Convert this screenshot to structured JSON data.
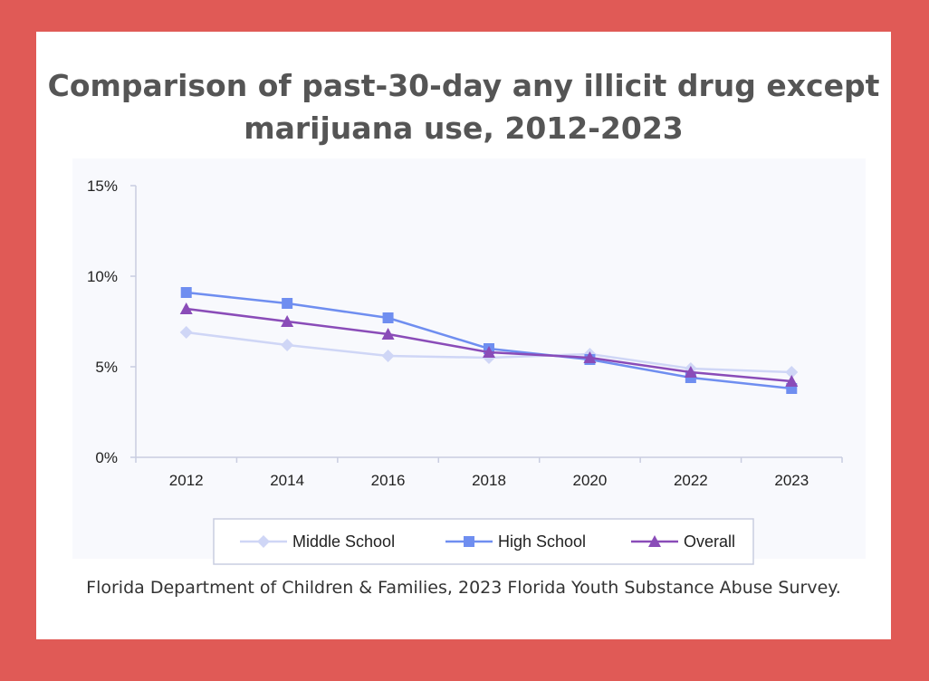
{
  "chart_data": {
    "type": "line",
    "title": "Comparison of past-30-day any illicit drug except marijuana use, 2012-2023",
    "categories": [
      "2012",
      "2014",
      "2016",
      "2018",
      "2020",
      "2022",
      "2023"
    ],
    "y_ticks": [
      "0%",
      "5%",
      "10%",
      "15%"
    ],
    "ylim": [
      0,
      15
    ],
    "grid": false,
    "legend_position": "bottom",
    "series": [
      {
        "name": "Middle School",
        "values": [
          6.9,
          6.2,
          5.6,
          5.5,
          5.7,
          4.9,
          4.7
        ],
        "color": "#cfd6f6",
        "marker": "diamond"
      },
      {
        "name": "High School",
        "values": [
          9.1,
          8.5,
          7.7,
          6.0,
          5.4,
          4.4,
          3.8
        ],
        "color": "#6f8ef0",
        "marker": "square"
      },
      {
        "name": "Overall",
        "values": [
          8.2,
          7.5,
          6.8,
          5.8,
          5.5,
          4.7,
          4.2
        ],
        "color": "#8a4cb8",
        "marker": "triangle"
      }
    ]
  },
  "footer": {
    "source": "Florida Department of Children & Families, 2023 Florida Youth Substance Abuse Survey."
  }
}
